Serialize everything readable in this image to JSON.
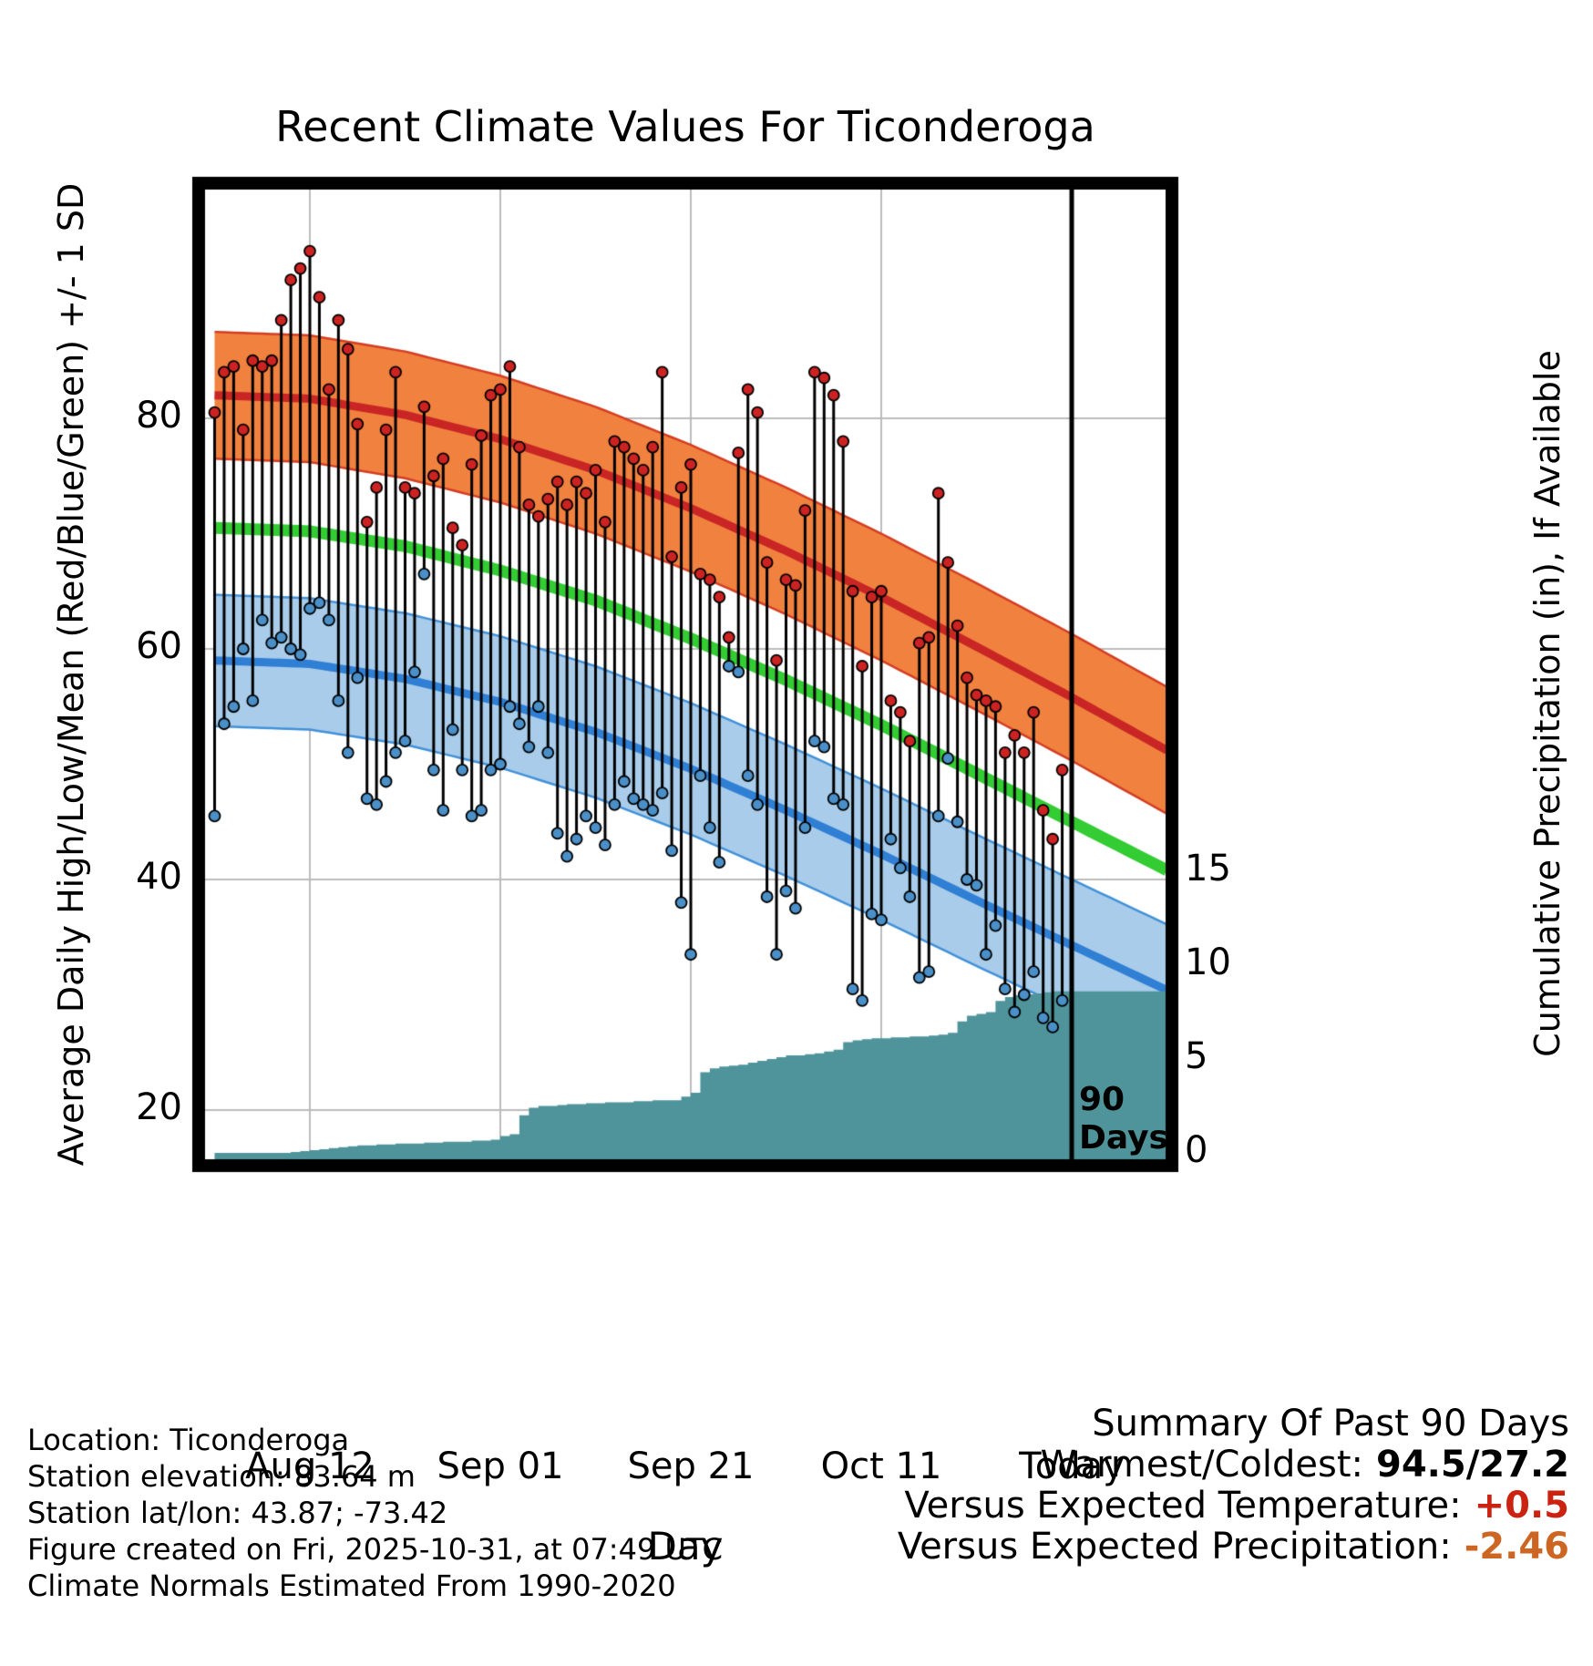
{
  "chart": {
    "title": "Recent Climate Values For Ticonderoga",
    "x_label": "Day",
    "y_left_label": "Average Daily High/Low/Mean (Red/Blue/Green) +/- 1 SD",
    "y_right_label": "Cumulative Precipitation (in), If Available",
    "marker_label": "90\nDays"
  },
  "chart_data": {
    "type": "line",
    "title": "Recent Climate Values For Ticonderoga",
    "xlabel": "Day",
    "ylabel_left": "Average Daily High/Low/Mean (Red/Blue/Green) +/- 1 SD",
    "ylabel_right": "Cumulative Precipitation (in), If Available",
    "x_ticks": [
      {
        "day": 10,
        "label": "Aug 12"
      },
      {
        "day": 30,
        "label": "Sep 01"
      },
      {
        "day": 50,
        "label": "Sep 21"
      },
      {
        "day": 70,
        "label": "Oct 11"
      },
      {
        "day": 90,
        "label": "Today"
      }
    ],
    "y_left_ticks": [
      20,
      40,
      60,
      80
    ],
    "y_right_ticks": [
      0,
      5,
      10,
      15
    ],
    "today_index": 90,
    "daily": {
      "high": [
        80.5,
        84,
        84.5,
        79,
        85,
        84.5,
        85,
        88.5,
        92,
        93,
        94.5,
        90.5,
        82.5,
        88.5,
        86,
        79.5,
        71,
        74,
        79,
        84,
        74,
        73.5,
        81,
        75,
        76.5,
        70.5,
        69,
        76,
        78.5,
        82,
        82.5,
        84.5,
        77.5,
        72.5,
        71.5,
        73,
        74.5,
        72.5,
        74.5,
        73.5,
        75.5,
        71,
        78,
        77.5,
        76.5,
        75.5,
        77.5,
        84,
        68,
        74,
        76,
        66.5,
        66,
        64.5,
        61,
        77,
        82.5,
        80.5,
        67.5,
        59,
        66,
        65.5,
        72,
        84,
        83.5,
        82,
        78,
        65,
        58.5,
        64.5,
        65,
        55.5,
        54.5,
        52,
        60.5,
        61,
        73.5,
        67.5,
        62,
        57.5,
        56,
        55.5,
        55,
        51,
        52.5,
        51,
        54.5,
        46,
        43.5,
        49.5
      ],
      "low": [
        45.5,
        53.5,
        55,
        60,
        55.5,
        62.5,
        60.5,
        61,
        60,
        59.5,
        63.5,
        64,
        62.5,
        55.5,
        51,
        57.5,
        47,
        46.5,
        48.5,
        51,
        52,
        58,
        66.5,
        49.5,
        46,
        53,
        49.5,
        45.5,
        46,
        49.5,
        50,
        55,
        53.5,
        51.5,
        55,
        51,
        44,
        42,
        43.5,
        45.5,
        44.5,
        43,
        46.5,
        48.5,
        47,
        46.5,
        46,
        47.5,
        42.5,
        38,
        33.5,
        49,
        44.5,
        41.5,
        58.5,
        58,
        49,
        46.5,
        38.5,
        33.5,
        39,
        37.5,
        44.5,
        52,
        51.5,
        47,
        46.5,
        30.5,
        29.5,
        37,
        36.5,
        43.5,
        41,
        38.5,
        31.5,
        32,
        45.5,
        50.5,
        45,
        40,
        39.5,
        33.5,
        36,
        30.5,
        28.5,
        30,
        32,
        28,
        27.2,
        29.5
      ]
    },
    "cumulative_precip_in": [
      0,
      0,
      0,
      0,
      0,
      0,
      0,
      0,
      0.05,
      0.1,
      0.15,
      0.2,
      0.25,
      0.3,
      0.35,
      0.4,
      0.4,
      0.45,
      0.45,
      0.5,
      0.5,
      0.5,
      0.55,
      0.55,
      0.6,
      0.6,
      0.6,
      0.65,
      0.65,
      0.7,
      0.9,
      1.0,
      2.0,
      2.4,
      2.5,
      2.5,
      2.55,
      2.6,
      2.6,
      2.65,
      2.65,
      2.7,
      2.7,
      2.7,
      2.75,
      2.75,
      2.8,
      2.8,
      2.8,
      3.0,
      3.2,
      4.3,
      4.5,
      4.6,
      4.65,
      4.7,
      4.8,
      4.9,
      5.0,
      5.1,
      5.2,
      5.2,
      5.25,
      5.3,
      5.4,
      5.5,
      5.9,
      6.0,
      6.05,
      6.1,
      6.1,
      6.15,
      6.15,
      6.2,
      6.2,
      6.25,
      6.3,
      6.4,
      7.0,
      7.3,
      7.4,
      7.5,
      8.1,
      8.3,
      8.4,
      8.45,
      8.5,
      8.55,
      8.6,
      8.6
    ],
    "normals": {
      "days": [
        0,
        10,
        20,
        30,
        40,
        50,
        60,
        70,
        80,
        90,
        100
      ],
      "high_mean": [
        82,
        81.7,
        80.3,
        78.2,
        75.5,
        72.2,
        68.5,
        64.5,
        60.2,
        55.8,
        51.2
      ],
      "low_mean": [
        59,
        58.7,
        57.4,
        55.4,
        52.8,
        49.6,
        46.0,
        42.2,
        38.2,
        34.3,
        30.4
      ],
      "mean": [
        70.5,
        70.2,
        68.9,
        66.8,
        64.2,
        60.9,
        57.3,
        53.4,
        49.2,
        45.0,
        40.8
      ],
      "high_sd": 5.5,
      "low_sd": 5.7
    },
    "colors": {
      "high_band": "#f0813f",
      "high_band_edge": "#d43d23",
      "high_line": "#c92525",
      "low_band": "#a8cce9",
      "low_band_edge": "#4191d9",
      "low_line": "#2f7fd4",
      "mean_line": "#33cc33",
      "precip_fill": "#4f949b",
      "dot_high": "#cc2222",
      "dot_low": "#4a8fc7",
      "stem": "#000000",
      "grid": "#bbbbbb",
      "frame": "#000000"
    }
  },
  "footer": {
    "lines": [
      "Location: Ticonderoga",
      "Station elevation: 83.64 m",
      "Station lat/lon: 43.87; -73.42",
      "Figure created on Fri, 2025-10-31, at 07:49 UTC",
      "Climate Normals Estimated From 1990-2020"
    ]
  },
  "summary": {
    "title": "Summary Of Past 90 Days",
    "rows": [
      {
        "label": "Warmest/Coldest:",
        "value": "94.5/27.2",
        "color": "#000000"
      },
      {
        "label": "Versus Expected Temperature:",
        "value": "+0.5",
        "color": "#cc2211"
      },
      {
        "label": "Versus Expected Precipitation:",
        "value": "-2.46",
        "color": "#cc6622"
      }
    ]
  }
}
